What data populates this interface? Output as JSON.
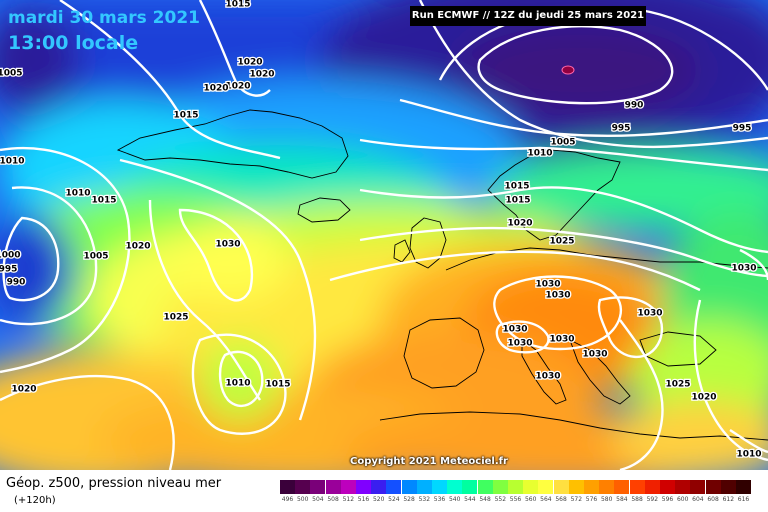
{
  "header": {
    "date": "mardi 30 mars 2021",
    "local_time": "13:00 locale",
    "run_info": "Run ECMWF // 12Z du jeudi 25 mars 2021"
  },
  "copyright": "Copyright 2021 Meteociel.fr",
  "legend": {
    "title": "Géop. z500, pression niveau mer",
    "lead": "(+120h)",
    "scale_labels": [
      "496",
      "500",
      "504",
      "508",
      "512",
      "516",
      "520",
      "524",
      "528",
      "532",
      "536",
      "540",
      "544",
      "548",
      "552",
      "556",
      "560",
      "564",
      "568",
      "572",
      "576",
      "580",
      "584",
      "588",
      "592",
      "596",
      "600",
      "604",
      "608",
      "612",
      "616"
    ],
    "scale_colors": [
      "#3a003a",
      "#56004f",
      "#7a0079",
      "#9a009a",
      "#bd00bd",
      "#8000ff",
      "#3a1ef0",
      "#1450ff",
      "#0088ff",
      "#00b0ff",
      "#00d8ff",
      "#00ffd0",
      "#00ffa0",
      "#40ff60",
      "#80ff40",
      "#b8ff30",
      "#e8ff30",
      "#ffff40",
      "#ffe040",
      "#ffc000",
      "#ffa000",
      "#ff8000",
      "#ff6000",
      "#ff4000",
      "#f02000",
      "#d00000",
      "#b00000",
      "#900000",
      "#700000",
      "#500000",
      "#300000"
    ]
  },
  "isobars": [
    {
      "label": "1015",
      "pos": [
        238,
        4
      ]
    },
    {
      "label": "1005",
      "pos": [
        10,
        73
      ]
    },
    {
      "label": "1020",
      "pos": [
        250,
        62
      ]
    },
    {
      "label": "1020",
      "pos": [
        262,
        74
      ]
    },
    {
      "label": "1020",
      "pos": [
        238,
        86
      ]
    },
    {
      "label": "1020",
      "pos": [
        216,
        88
      ]
    },
    {
      "label": "1015",
      "pos": [
        186,
        115
      ]
    },
    {
      "label": "1010",
      "pos": [
        12,
        161
      ]
    },
    {
      "label": "1010",
      "pos": [
        78,
        193
      ]
    },
    {
      "label": "1015",
      "pos": [
        104,
        200
      ]
    },
    {
      "label": "1020",
      "pos": [
        138,
        246
      ]
    },
    {
      "label": "1030",
      "pos": [
        228,
        244
      ]
    },
    {
      "label": "1005",
      "pos": [
        96,
        256
      ]
    },
    {
      "label": "1000",
      "pos": [
        8,
        255
      ]
    },
    {
      "label": "995",
      "pos": [
        8,
        269
      ]
    },
    {
      "label": "990",
      "pos": [
        16,
        282
      ]
    },
    {
      "label": "1025",
      "pos": [
        176,
        317
      ]
    },
    {
      "label": "1010",
      "pos": [
        238,
        383
      ]
    },
    {
      "label": "1015",
      "pos": [
        278,
        384
      ]
    },
    {
      "label": "1020",
      "pos": [
        24,
        389
      ]
    },
    {
      "label": "990",
      "pos": [
        634,
        105
      ]
    },
    {
      "label": "995",
      "pos": [
        621,
        128
      ]
    },
    {
      "label": "995",
      "pos": [
        742,
        128
      ]
    },
    {
      "label": "1005",
      "pos": [
        563,
        142
      ]
    },
    {
      "label": "1010",
      "pos": [
        540,
        153
      ]
    },
    {
      "label": "1015",
      "pos": [
        517,
        186
      ]
    },
    {
      "label": "1015",
      "pos": [
        518,
        200
      ]
    },
    {
      "label": "1020",
      "pos": [
        520,
        223
      ]
    },
    {
      "label": "1025",
      "pos": [
        562,
        241
      ]
    },
    {
      "label": "1030",
      "pos": [
        744,
        268
      ]
    },
    {
      "label": "1030",
      "pos": [
        548,
        284
      ]
    },
    {
      "label": "1030",
      "pos": [
        558,
        295
      ]
    },
    {
      "label": "1030",
      "pos": [
        650,
        313
      ]
    },
    {
      "label": "1030",
      "pos": [
        515,
        329
      ]
    },
    {
      "label": "1030",
      "pos": [
        520,
        343
      ]
    },
    {
      "label": "1030",
      "pos": [
        562,
        339
      ]
    },
    {
      "label": "1030",
      "pos": [
        595,
        354
      ]
    },
    {
      "label": "1030",
      "pos": [
        548,
        376
      ]
    },
    {
      "label": "1025",
      "pos": [
        678,
        384
      ]
    },
    {
      "label": "1020",
      "pos": [
        704,
        397
      ]
    },
    {
      "label": "1010",
      "pos": [
        749,
        454
      ]
    }
  ]
}
